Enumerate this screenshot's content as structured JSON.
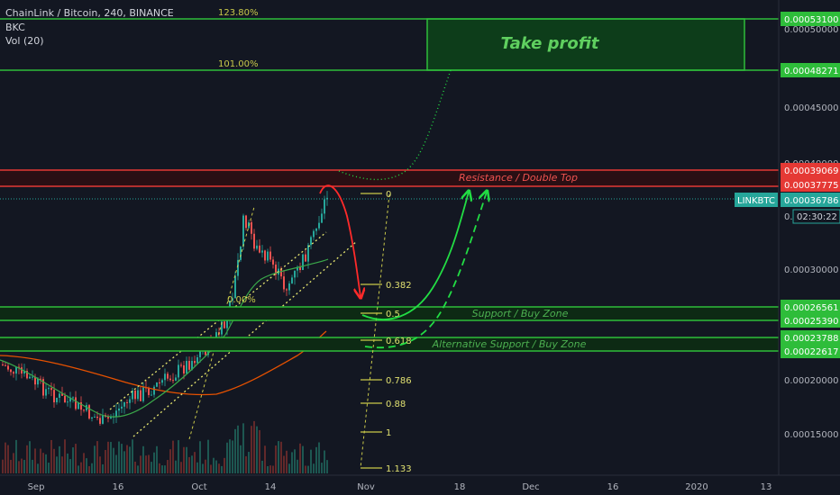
{
  "header": {
    "symbol_line": "ChainLink / Bitcoin, 240, BINANCE",
    "indicator": "BKC",
    "volume": "Vol (20)"
  },
  "annotations": {
    "take_profit": "Take profit",
    "resistance": "Resistance / Double Top",
    "support": "Support / Buy Zone",
    "alt_support": "Alternative Support / Buy Zone",
    "pct_123": "123.80%",
    "pct_101": "101.00%",
    "pct_0": "0.00%"
  },
  "fib_levels": [
    "0",
    "0.382",
    "0.5",
    "0.618",
    "0.786",
    "0.88",
    "1",
    "1.133"
  ],
  "price_axis": {
    "ticks": [
      "0.00050000",
      "0.00045000",
      "0.00040000",
      "0.00030000",
      "0.00020000",
      "0.00015000"
    ],
    "green_labels": [
      "0.00053100",
      "0.00048271",
      "0.00026561",
      "0.00025390",
      "0.00023788",
      "0.00022617"
    ],
    "red_labels": [
      "0.00039069",
      "0.00037775"
    ],
    "current_price": "0.00036786",
    "symbol_tag": "LINKBTC",
    "countdown": "02:30:22"
  },
  "time_axis": [
    "Sep",
    "16",
    "Oct",
    "14",
    "Nov",
    "18",
    "Dec",
    "16",
    "2020",
    "13"
  ],
  "colors": {
    "background": "#131722",
    "green_line": "#2ebd3a",
    "red_line": "#e53935",
    "fib_yellow": "#c9c94a",
    "candle_up": "#26a69a",
    "candle_down": "#ef5350",
    "ma_green": "#3aa84a",
    "ma_orange": "#e65100"
  }
}
